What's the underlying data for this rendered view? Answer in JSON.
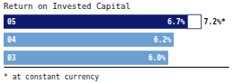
{
  "chart_data": {
    "type": "bar",
    "orientation": "horizontal",
    "title": "Return on Invested Capital",
    "categories": [
      "05",
      "04",
      "03"
    ],
    "values": [
      6.7,
      6.2,
      6.0
    ],
    "value_labels": [
      "6.7%",
      "6.2%",
      "6.0%"
    ],
    "colors": [
      "#0d1b6e",
      "#6b9fd4",
      "#6b9fd4"
    ],
    "data_labels": true,
    "tick_labels": false,
    "xlim": [
      0,
      8.2
    ],
    "annotations": [
      {
        "text": "7.2%*",
        "value": 7.2,
        "category": "05"
      },
      {
        "text": "* at constant currency"
      }
    ]
  }
}
